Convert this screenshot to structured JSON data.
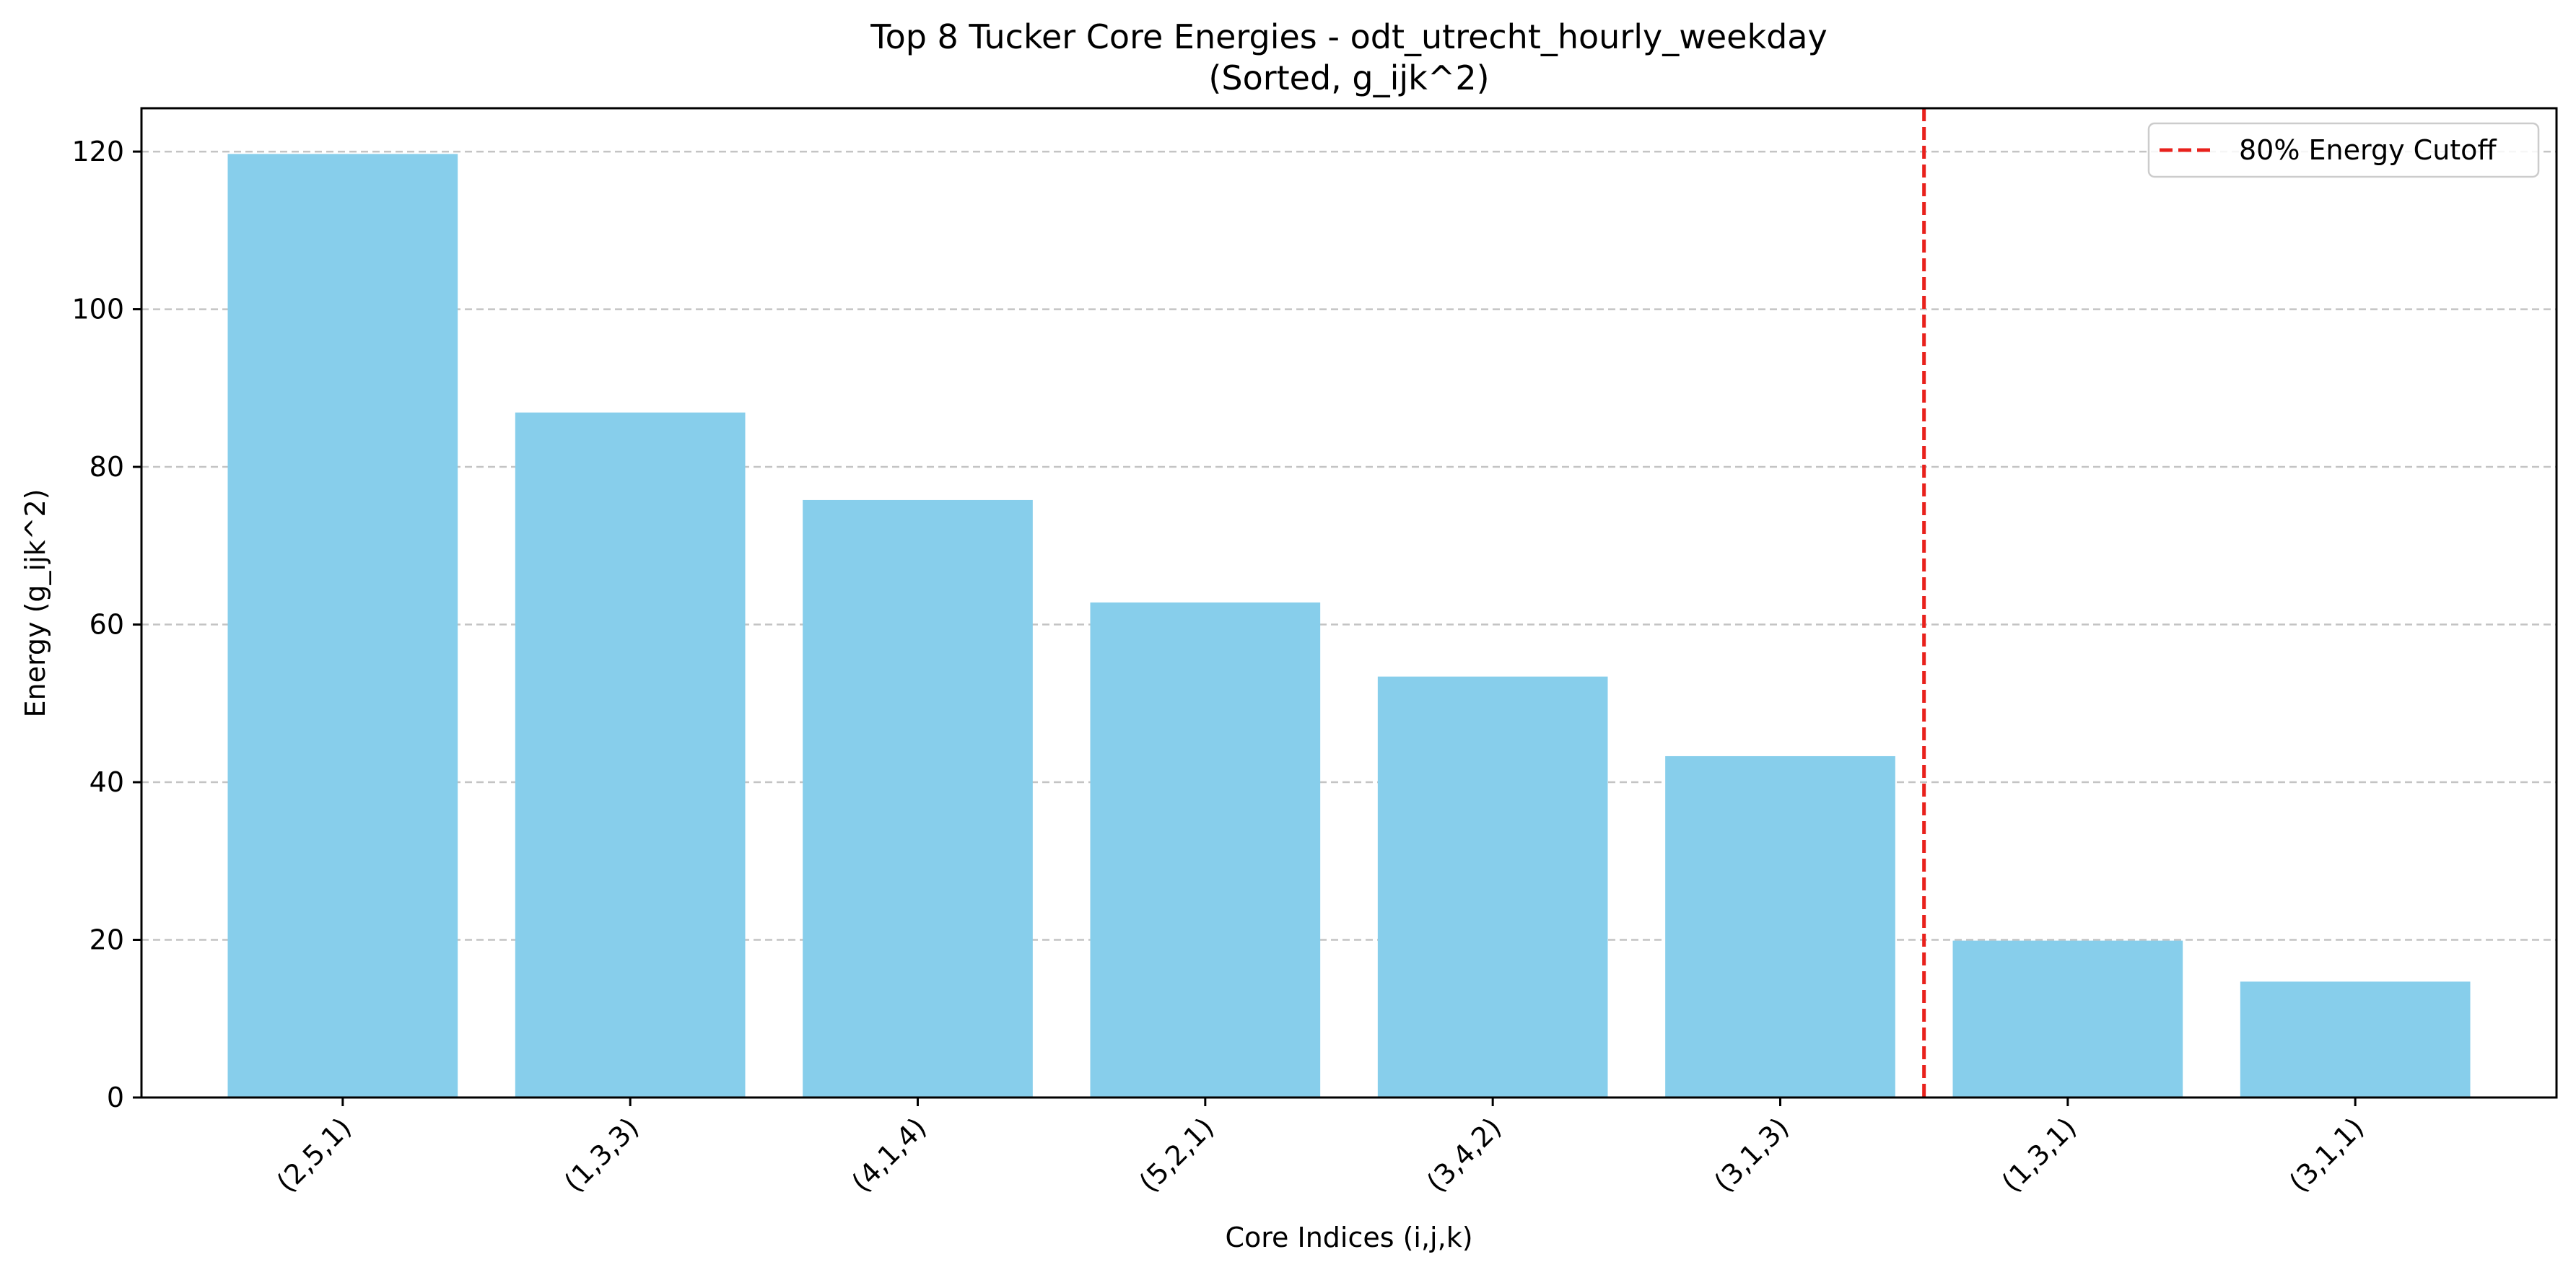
{
  "chart_data": {
    "type": "bar",
    "title": "Top 8 Tucker Core Energies - odt_utrecht_hourly_weekday",
    "subtitle": "(Sorted, g_ijk^2)",
    "xlabel": "Core Indices (i,j,k)",
    "ylabel": "Energy (g_ijk^2)",
    "categories": [
      "(2,5,1)",
      "(1,3,3)",
      "(4,1,4)",
      "(5,2,1)",
      "(3,4,2)",
      "(3,1,3)",
      "(1,3,1)",
      "(3,1,1)"
    ],
    "values": [
      119.7,
      86.9,
      75.8,
      62.8,
      53.4,
      43.3,
      19.9,
      14.7
    ],
    "ylim": [
      0,
      125.5
    ],
    "yticks": [
      0,
      20,
      40,
      60,
      80,
      100,
      120
    ],
    "grid": "y-dashed",
    "legend_position": "top-right",
    "cutoff_line": {
      "label": "80% Energy Cutoff",
      "after_category": "(3,1,3)"
    },
    "colors": {
      "bar": "#87CEEB",
      "cutoff": "#e8211c",
      "grid": "#c4c4c4"
    }
  }
}
